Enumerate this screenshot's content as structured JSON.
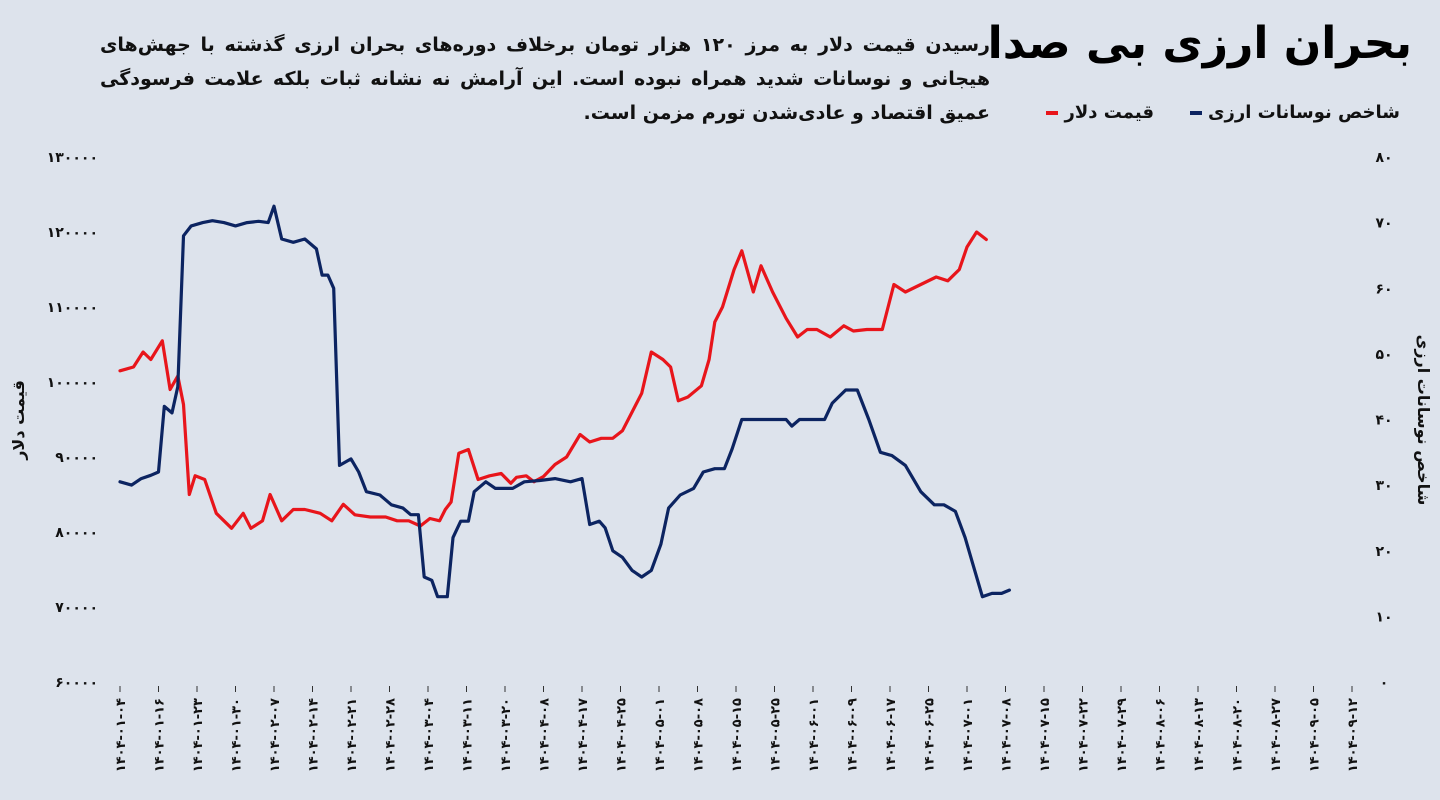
{
  "title": "بحران ارزی بی صدا",
  "subtitle": "رسیدن قیمت دلار به مرز ۱۲۰ هزار تومان برخلاف دوره‌های بحران ارزی گذشته با جهش‌های هیجانی و نوسانات شدید همراه نبوده است. این آرامش نه نشانه ثبات بلکه علامت فرسودگی عمیق اقتصاد و عادی‌شدن تورم مزمن است.",
  "legend": {
    "vol": "شاخص نوسانات ارزی",
    "usd": "قیمت دلار"
  },
  "colors": {
    "usd": "#e8151b",
    "vol": "#0c2461",
    "background": "#dde3ec"
  },
  "chart_data": {
    "type": "line",
    "x_ticks": [
      "۱۴۰۴-۰۱-۰۴",
      "۱۴۰۴-۰۱-۱۶",
      "۱۴۰۴-۰۱-۲۳",
      "۱۴۰۴-۰۱-۳۰",
      "۱۴۰۴-۰۲-۰۷",
      "۱۴۰۴-۰۲-۱۴",
      "۱۴۰۴-۰۲-۲۱",
      "۱۴۰۴-۰۲-۲۸",
      "۱۴۰۴-۰۳-۰۴",
      "۱۴۰۴-۰۳-۱۱",
      "۱۴۰۴-۰۳-۲۰",
      "۱۴۰۴-۰۴-۰۸",
      "۱۴۰۴-۰۴-۱۷",
      "۱۴۰۴-۰۴-۲۵",
      "۱۴۰۴-۰۵-۰۱",
      "۱۴۰۴-۰۵-۰۸",
      "۱۴۰۴-۰۵-۱۵",
      "۱۴۰۴-۰۵-۲۵",
      "۱۴۰۴-۰۶-۰۱",
      "۱۴۰۴-۰۶-۰۹",
      "۱۴۰۴-۰۶-۱۷",
      "۱۴۰۴-۰۶-۲۵",
      "۱۴۰۴-۰۷-۰۱",
      "۱۴۰۴-۰۷-۰۸",
      "۱۴۰۴-۰۷-۱۵",
      "۱۴۰۴-۰۷-۲۲",
      "۱۴۰۴-۰۷-۲۹",
      "۱۴۰۴-۰۸-۰۶",
      "۱۴۰۴-۰۸-۱۳",
      "۱۴۰۴-۰۸-۲۰",
      "۱۴۰۴-۰۸-۲۷",
      "۱۴۰۴-۰۹-۰۵",
      "۱۴۰۴-۰۹-۱۲"
    ],
    "y_left": {
      "label": "قیمت دلار",
      "range": [
        60000,
        130000
      ],
      "ticks": [
        "۶۰۰۰۰",
        "۷۰۰۰۰",
        "۸۰۰۰۰",
        "۹۰۰۰۰",
        "۱۰۰۰۰۰",
        "۱۱۰۰۰۰",
        "۱۲۰۰۰۰",
        "۱۳۰۰۰۰"
      ]
    },
    "y_right": {
      "label": "شاخص نوسانات ارزی",
      "range": [
        0,
        80
      ],
      "ticks": [
        "۰",
        "۱۰",
        "۲۰",
        "۳۰",
        "۴۰",
        "۵۰",
        "۶۰",
        "۷۰",
        "۸۰"
      ]
    },
    "series": [
      {
        "name": "قیمت دلار",
        "axis": "left",
        "color": "#e8151b",
        "points": [
          [
            0,
            101500
          ],
          [
            0.35,
            102000
          ],
          [
            0.6,
            104000
          ],
          [
            0.8,
            103000
          ],
          [
            1.1,
            105500
          ],
          [
            1.3,
            99000
          ],
          [
            1.5,
            100800
          ],
          [
            1.65,
            97000
          ],
          [
            1.8,
            85000
          ],
          [
            1.95,
            87500
          ],
          [
            2.2,
            87000
          ],
          [
            2.5,
            82500
          ],
          [
            2.9,
            80500
          ],
          [
            3.2,
            82500
          ],
          [
            3.4,
            80500
          ],
          [
            3.7,
            81500
          ],
          [
            3.9,
            85000
          ],
          [
            4.2,
            81500
          ],
          [
            4.5,
            83000
          ],
          [
            4.8,
            83000
          ],
          [
            5.2,
            82500
          ],
          [
            5.5,
            81500
          ],
          [
            5.8,
            83700
          ],
          [
            6.1,
            82300
          ],
          [
            6.5,
            82000
          ],
          [
            6.9,
            82000
          ],
          [
            7.2,
            81500
          ],
          [
            7.5,
            81500
          ],
          [
            7.8,
            80800
          ],
          [
            8.05,
            81800
          ],
          [
            8.3,
            81500
          ],
          [
            8.45,
            83000
          ],
          [
            8.6,
            84000
          ],
          [
            8.8,
            90500
          ],
          [
            9.05,
            91000
          ],
          [
            9.3,
            87000
          ],
          [
            9.6,
            87500
          ],
          [
            9.9,
            87800
          ],
          [
            10.15,
            86500
          ],
          [
            10.3,
            87300
          ],
          [
            10.55,
            87500
          ],
          [
            10.75,
            86700
          ],
          [
            11.0,
            87400
          ],
          [
            11.3,
            89000
          ],
          [
            11.6,
            90000
          ],
          [
            11.95,
            93000
          ],
          [
            12.2,
            92000
          ],
          [
            12.5,
            92500
          ],
          [
            12.8,
            92500
          ],
          [
            13.05,
            93500
          ],
          [
            13.3,
            96000
          ],
          [
            13.55,
            98500
          ],
          [
            13.8,
            104000
          ],
          [
            14.1,
            103000
          ],
          [
            14.3,
            102000
          ],
          [
            14.5,
            97500
          ],
          [
            14.75,
            98000
          ],
          [
            15.1,
            99500
          ],
          [
            15.3,
            103000
          ],
          [
            15.45,
            108000
          ],
          [
            15.65,
            110000
          ],
          [
            15.95,
            115000
          ],
          [
            16.15,
            117500
          ],
          [
            16.45,
            112000
          ],
          [
            16.65,
            115500
          ],
          [
            16.95,
            112000
          ],
          [
            17.3,
            108500
          ],
          [
            17.6,
            106000
          ],
          [
            17.85,
            107000
          ],
          [
            18.1,
            107000
          ],
          [
            18.45,
            106000
          ],
          [
            18.8,
            107500
          ],
          [
            19.05,
            106800
          ],
          [
            19.4,
            107000
          ],
          [
            19.8,
            107000
          ],
          [
            20.1,
            113000
          ],
          [
            20.4,
            112000
          ],
          [
            20.8,
            113000
          ],
          [
            21.2,
            114000
          ],
          [
            21.5,
            113500
          ],
          [
            21.8,
            115000
          ],
          [
            22.0,
            118000
          ],
          [
            22.25,
            120000
          ],
          [
            22.5,
            119000
          ]
        ]
      },
      {
        "name": "شاخص نوسانات ارزی",
        "axis": "right",
        "color": "#0c2461",
        "points": [
          [
            0,
            30.5
          ],
          [
            0.3,
            30
          ],
          [
            0.55,
            31
          ],
          [
            0.8,
            31.5
          ],
          [
            1.0,
            32
          ],
          [
            1.15,
            42
          ],
          [
            1.35,
            41
          ],
          [
            1.5,
            45
          ],
          [
            1.65,
            68
          ],
          [
            1.85,
            69.5
          ],
          [
            2.15,
            70
          ],
          [
            2.4,
            70.3
          ],
          [
            2.7,
            70
          ],
          [
            3.0,
            69.5
          ],
          [
            3.3,
            70
          ],
          [
            3.6,
            70.2
          ],
          [
            3.85,
            70
          ],
          [
            4.0,
            72.5
          ],
          [
            4.2,
            67.5
          ],
          [
            4.5,
            67
          ],
          [
            4.8,
            67.5
          ],
          [
            5.1,
            66
          ],
          [
            5.25,
            62
          ],
          [
            5.4,
            62
          ],
          [
            5.55,
            60
          ],
          [
            5.7,
            33
          ],
          [
            6.0,
            34
          ],
          [
            6.2,
            32
          ],
          [
            6.4,
            29
          ],
          [
            6.75,
            28.5
          ],
          [
            7.05,
            27
          ],
          [
            7.35,
            26.5
          ],
          [
            7.55,
            25.5
          ],
          [
            7.75,
            25.5
          ],
          [
            7.9,
            16
          ],
          [
            8.1,
            15.5
          ],
          [
            8.25,
            13
          ],
          [
            8.5,
            13
          ],
          [
            8.65,
            22
          ],
          [
            8.85,
            24.5
          ],
          [
            9.05,
            24.5
          ],
          [
            9.2,
            29
          ],
          [
            9.5,
            30.5
          ],
          [
            9.75,
            29.5
          ],
          [
            10.2,
            29.5
          ],
          [
            10.5,
            30.5
          ],
          [
            10.9,
            30.7
          ],
          [
            11.3,
            31
          ],
          [
            11.7,
            30.5
          ],
          [
            12.0,
            31
          ],
          [
            12.2,
            24
          ],
          [
            12.45,
            24.5
          ],
          [
            12.6,
            23.5
          ],
          [
            12.8,
            20
          ],
          [
            13.05,
            19
          ],
          [
            13.3,
            17
          ],
          [
            13.55,
            16
          ],
          [
            13.8,
            17
          ],
          [
            14.05,
            21
          ],
          [
            14.25,
            26.5
          ],
          [
            14.55,
            28.5
          ],
          [
            14.9,
            29.5
          ],
          [
            15.15,
            32
          ],
          [
            15.45,
            32.5
          ],
          [
            15.7,
            32.5
          ],
          [
            15.9,
            35.5
          ],
          [
            16.15,
            40
          ],
          [
            16.45,
            40
          ],
          [
            16.75,
            40
          ],
          [
            17.0,
            40
          ],
          [
            17.3,
            40
          ],
          [
            17.45,
            39
          ],
          [
            17.65,
            40
          ],
          [
            17.95,
            40
          ],
          [
            18.3,
            40
          ],
          [
            18.5,
            42.5
          ],
          [
            18.85,
            44.5
          ],
          [
            19.15,
            44.5
          ],
          [
            19.45,
            40
          ],
          [
            19.75,
            35
          ],
          [
            20.05,
            34.5
          ],
          [
            20.4,
            33
          ],
          [
            20.8,
            29
          ],
          [
            21.15,
            27
          ],
          [
            21.4,
            27
          ],
          [
            21.7,
            26
          ],
          [
            21.95,
            22
          ],
          [
            22.15,
            18
          ],
          [
            22.4,
            13
          ],
          [
            22.65,
            13.5
          ],
          [
            22.9,
            13.5
          ],
          [
            23.1,
            14
          ]
        ]
      }
    ],
    "grid": false,
    "legend_position": "top-right"
  }
}
